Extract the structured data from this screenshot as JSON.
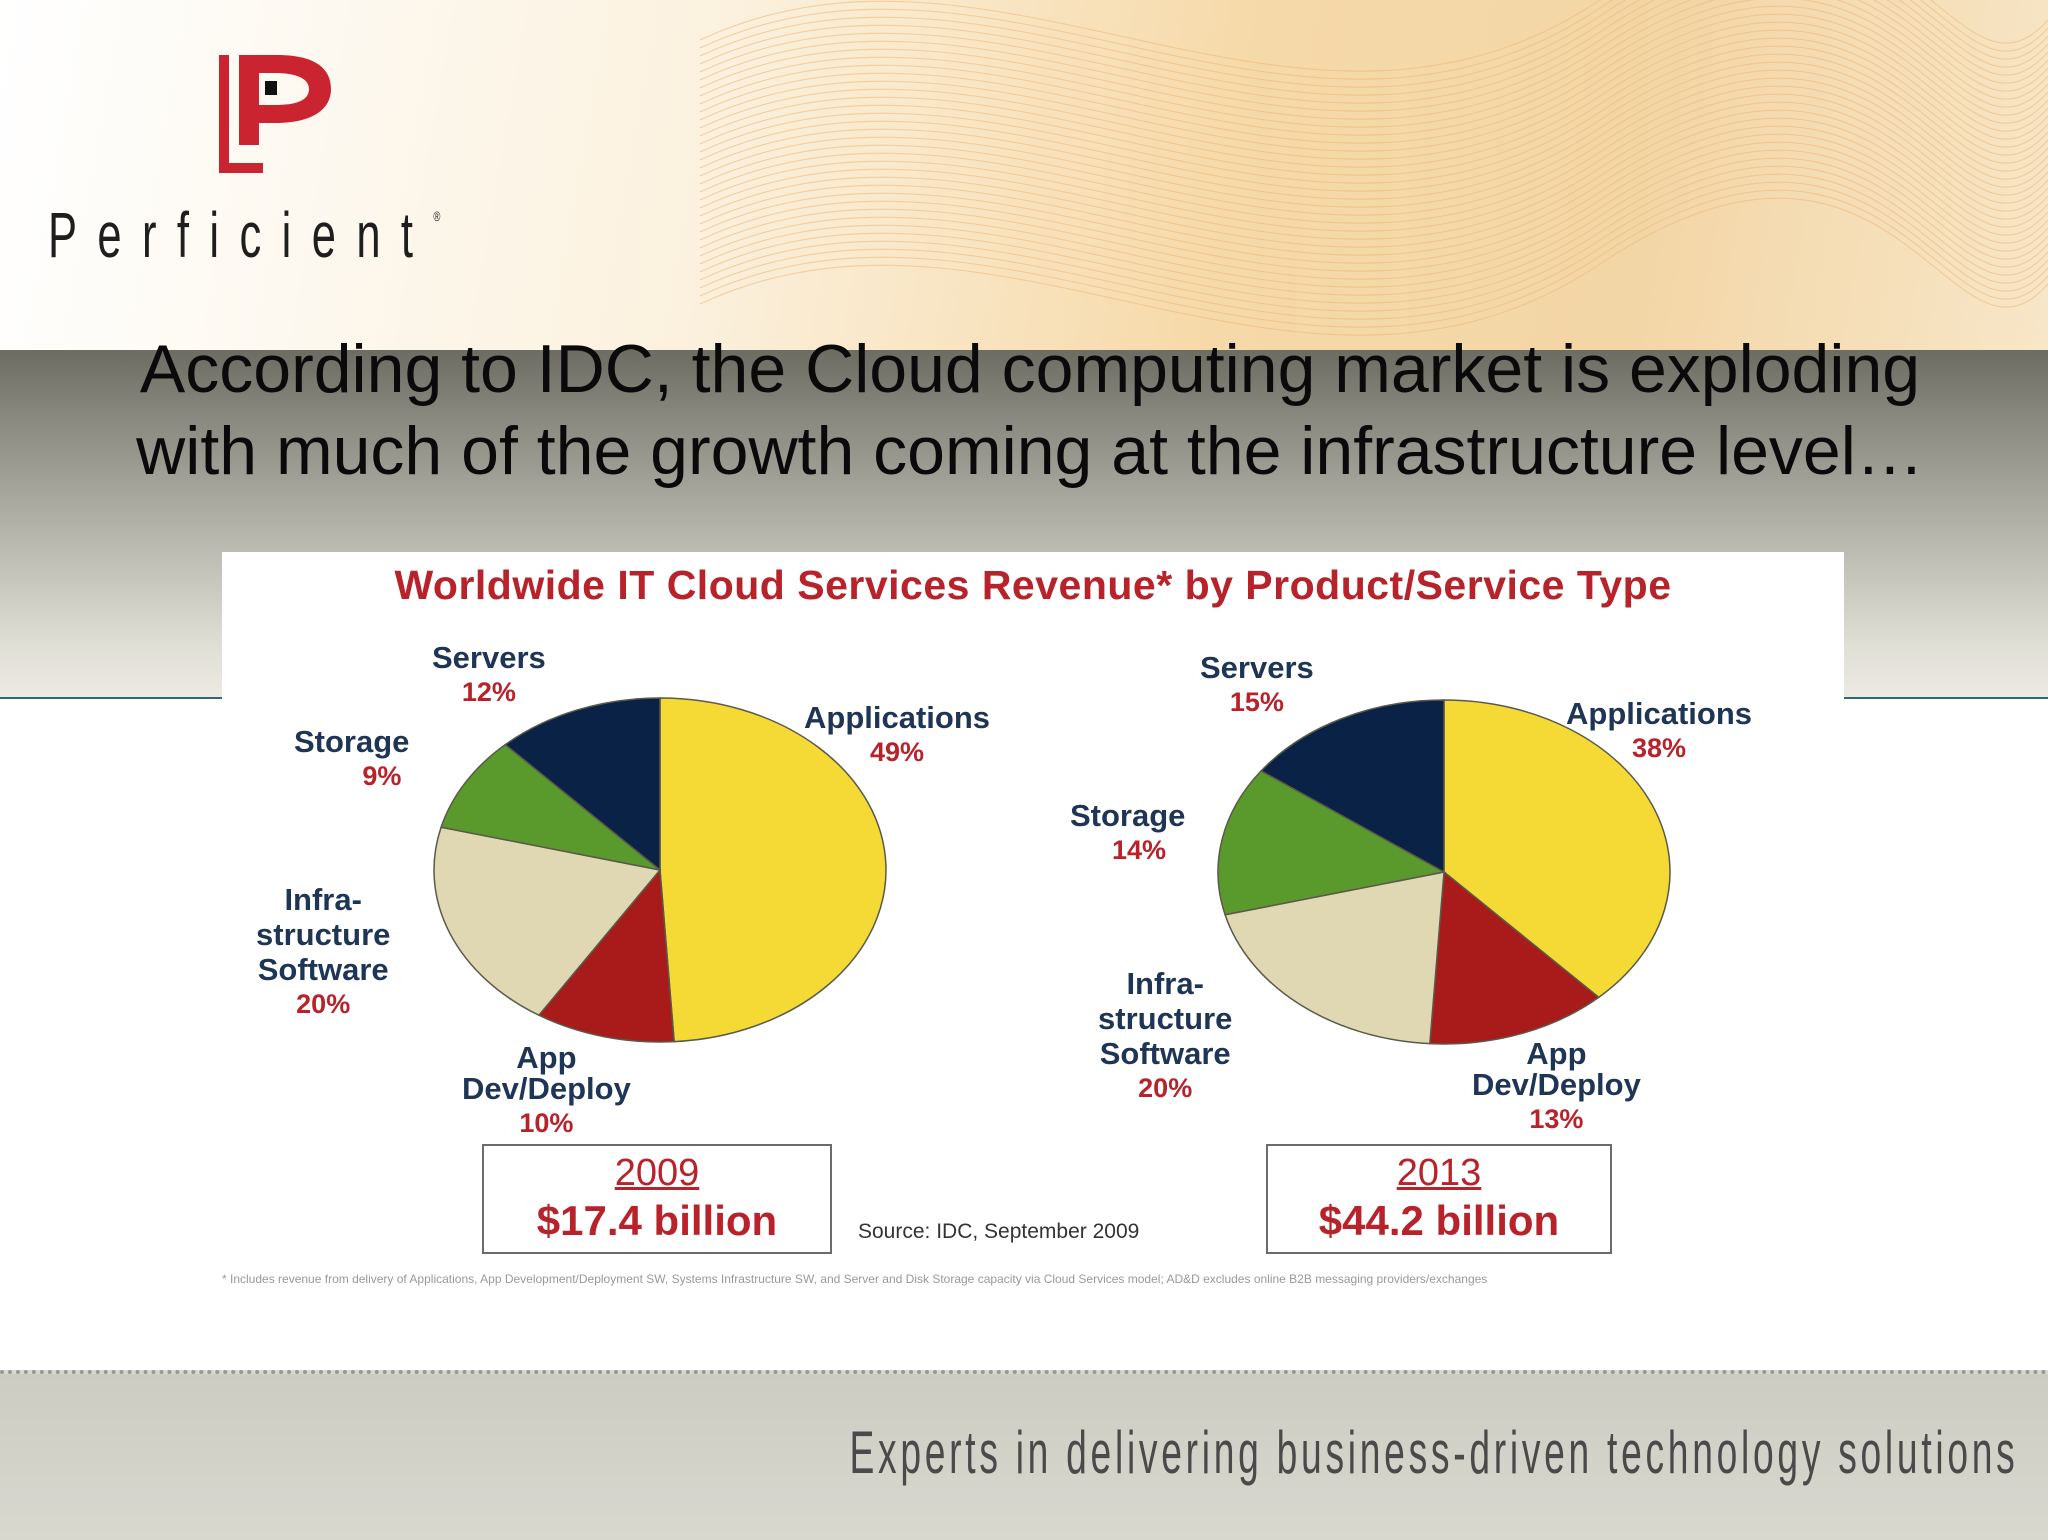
{
  "logo": {
    "wordmark": "Perficient",
    "registered": "®"
  },
  "headline": {
    "line1": "According to IDC, the Cloud computing market is exploding",
    "line2": "with much of the growth coming at the infrastructure level…"
  },
  "colors": {
    "applications": "#f5d935",
    "app_dev_deploy": "#a91a1a",
    "infrastructure_software": "#e0d7b3",
    "storage": "#5a9a2c",
    "servers": "#0b2247",
    "label_name": "#1f3556",
    "label_percent": "#b8222a"
  },
  "chart_data": {
    "type": "pie",
    "title": "Worldwide IT Cloud Services Revenue* by Product/Service Type",
    "pies": [
      {
        "year": "2009",
        "total": "$17.4 billion",
        "slices": [
          {
            "name": "Applications",
            "label_lines": [
              "Applications"
            ],
            "percent_label": "49%",
            "value": 49
          },
          {
            "name": "App Dev/Deploy",
            "label_lines": [
              "App",
              "Dev/Deploy"
            ],
            "percent_label": "10%",
            "value": 10
          },
          {
            "name": "Infrastructure Software",
            "label_lines": [
              "Infra-",
              "structure",
              "Software"
            ],
            "percent_label": "20%",
            "value": 20
          },
          {
            "name": "Storage",
            "label_lines": [
              "Storage"
            ],
            "percent_label": "9%",
            "value": 9
          },
          {
            "name": "Servers",
            "label_lines": [
              "Servers"
            ],
            "percent_label": "12%",
            "value": 12
          }
        ]
      },
      {
        "year": "2013",
        "total": "$44.2 billion",
        "slices": [
          {
            "name": "Applications",
            "label_lines": [
              "Applications"
            ],
            "percent_label": "38%",
            "value": 38
          },
          {
            "name": "App Dev/Deploy",
            "label_lines": [
              "App",
              "Dev/Deploy"
            ],
            "percent_label": "13%",
            "value": 13
          },
          {
            "name": "Infrastructure Software",
            "label_lines": [
              "Infra-",
              "structure",
              "Software"
            ],
            "percent_label": "20%",
            "value": 20
          },
          {
            "name": "Storage",
            "label_lines": [
              "Storage"
            ],
            "percent_label": "14%",
            "value": 14
          },
          {
            "name": "Servers",
            "label_lines": [
              "Servers"
            ],
            "percent_label": "15%",
            "value": 15
          }
        ]
      }
    ],
    "source": "Source: IDC, September 2009",
    "footnote": "* Includes revenue from delivery of Applications, App Development/Deployment SW, Systems Infrastructure SW, and Server and Disk Storage capacity via Cloud Services model; AD&D excludes online B2B messaging providers/exchanges"
  },
  "footer": {
    "tagline": "Experts in delivering business-driven technology solutions"
  }
}
